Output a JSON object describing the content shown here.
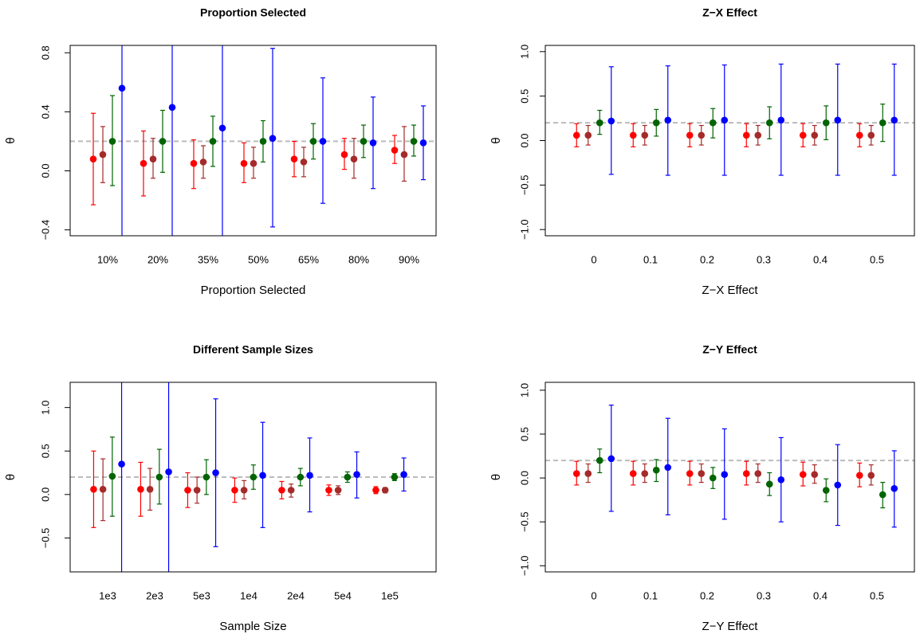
{
  "chart_data": [
    {
      "type": "errorbar",
      "title": "Proportion Selected",
      "xlabel": "Proportion Selected",
      "ylabel": "θ",
      "categories": [
        "10%",
        "20%",
        "35%",
        "50%",
        "65%",
        "80%",
        "90%"
      ],
      "ylim": [
        -0.44,
        0.85
      ],
      "yticks": [
        {
          "value": -0.4,
          "label": "−0.4"
        },
        {
          "value": 0,
          "label": "0.0"
        },
        0.4,
        0.8
      ],
      "hline": 0.2,
      "series": [
        {
          "color": "#ff0000",
          "values": [
            0.08,
            0.05,
            0.05,
            0.05,
            0.08,
            0.11,
            0.14
          ],
          "lower": [
            -0.23,
            -0.17,
            -0.12,
            -0.08,
            -0.04,
            0.01,
            0.05
          ],
          "upper": [
            0.39,
            0.27,
            0.21,
            0.19,
            0.2,
            0.22,
            0.24
          ]
        },
        {
          "color": "#a52a2a",
          "values": [
            0.11,
            0.08,
            0.06,
            0.05,
            0.06,
            0.08,
            0.11
          ],
          "lower": [
            -0.08,
            -0.05,
            -0.05,
            -0.05,
            -0.04,
            -0.05,
            -0.07
          ],
          "upper": [
            0.3,
            0.22,
            0.17,
            0.16,
            0.16,
            0.22,
            0.3
          ]
        },
        {
          "color": "#006400",
          "values": [
            0.2,
            0.2,
            0.2,
            0.2,
            0.2,
            0.2,
            0.2
          ],
          "lower": [
            -0.1,
            -0.01,
            0.03,
            0.06,
            0.08,
            0.09,
            0.1
          ],
          "upper": [
            0.51,
            0.41,
            0.37,
            0.34,
            0.32,
            0.31,
            0.31
          ]
        },
        {
          "color": "#0000ff",
          "values": [
            0.56,
            0.43,
            0.29,
            0.22,
            0.2,
            0.19,
            0.19
          ],
          "lower": [
            -0.6,
            -0.6,
            -0.8,
            -0.38,
            -0.22,
            -0.12,
            -0.06
          ],
          "upper": [
            1.7,
            1.5,
            1.4,
            0.83,
            0.63,
            0.5,
            0.44
          ]
        }
      ]
    },
    {
      "type": "errorbar",
      "title": "Z−X Effect",
      "xlabel": "Z−X Effect",
      "ylabel": "θ",
      "categories": [
        "0",
        "0.1",
        "0.2",
        "0.3",
        "0.4",
        "0.5"
      ],
      "ylim": [
        -1.07,
        1.07
      ],
      "yticks": [
        {
          "value": -1,
          "label": "−1.0"
        },
        {
          "value": -0.5,
          "label": "−0.5"
        },
        {
          "value": 0,
          "label": "0.0"
        },
        0.5,
        {
          "value": 1,
          "label": "1.0"
        }
      ],
      "hline": 0.2,
      "series": [
        {
          "color": "#ff0000",
          "values": [
            0.06,
            0.06,
            0.06,
            0.06,
            0.06,
            0.06
          ],
          "lower": [
            -0.07,
            -0.07,
            -0.07,
            -0.07,
            -0.07,
            -0.07
          ],
          "upper": [
            0.19,
            0.19,
            0.19,
            0.19,
            0.19,
            0.19
          ]
        },
        {
          "color": "#a52a2a",
          "values": [
            0.06,
            0.06,
            0.06,
            0.06,
            0.06,
            0.06
          ],
          "lower": [
            -0.05,
            -0.05,
            -0.05,
            -0.05,
            -0.05,
            -0.05
          ],
          "upper": [
            0.17,
            0.17,
            0.17,
            0.17,
            0.17,
            0.17
          ]
        },
        {
          "color": "#006400",
          "values": [
            0.2,
            0.2,
            0.2,
            0.2,
            0.2,
            0.2
          ],
          "lower": [
            0.07,
            0.05,
            0.03,
            0.02,
            0.01,
            -0.01
          ],
          "upper": [
            0.34,
            0.35,
            0.36,
            0.38,
            0.39,
            0.41
          ]
        },
        {
          "color": "#0000ff",
          "values": [
            0.22,
            0.23,
            0.23,
            0.23,
            0.23,
            0.23
          ],
          "lower": [
            -0.38,
            -0.39,
            -0.39,
            -0.39,
            -0.39,
            -0.39
          ],
          "upper": [
            0.83,
            0.84,
            0.85,
            0.86,
            0.86,
            0.86
          ]
        }
      ]
    },
    {
      "type": "errorbar",
      "title": "Different Sample Sizes",
      "xlabel": "Sample Size",
      "ylabel": "θ",
      "categories": [
        "1e3",
        "2e3",
        "5e3",
        "1e4",
        "2e4",
        "5e4",
        "1e5"
      ],
      "ylim": [
        -0.89,
        1.29
      ],
      "yticks": [
        {
          "value": -0.5,
          "label": "−0.5"
        },
        {
          "value": 0,
          "label": "0.0"
        },
        0.5,
        {
          "value": 1,
          "label": "1.0"
        }
      ],
      "hline": 0.2,
      "series": [
        {
          "color": "#ff0000",
          "values": [
            0.06,
            0.06,
            0.05,
            0.05,
            0.05,
            0.05,
            0.05
          ],
          "lower": [
            -0.38,
            -0.25,
            -0.15,
            -0.09,
            -0.05,
            -0.01,
            0.01
          ],
          "upper": [
            0.5,
            0.37,
            0.25,
            0.19,
            0.15,
            0.11,
            0.09
          ]
        },
        {
          "color": "#a52a2a",
          "values": [
            0.06,
            0.06,
            0.05,
            0.05,
            0.05,
            0.05,
            0.05
          ],
          "lower": [
            -0.3,
            -0.18,
            -0.1,
            -0.05,
            -0.03,
            0,
            0.02
          ],
          "upper": [
            0.41,
            0.3,
            0.2,
            0.16,
            0.12,
            0.1,
            0.08
          ]
        },
        {
          "color": "#006400",
          "values": [
            0.21,
            0.2,
            0.2,
            0.2,
            0.2,
            0.2,
            0.2
          ],
          "lower": [
            -0.25,
            -0.11,
            0,
            0.06,
            0.1,
            0.14,
            0.16
          ],
          "upper": [
            0.66,
            0.52,
            0.4,
            0.34,
            0.3,
            0.26,
            0.24
          ]
        },
        {
          "color": "#0000ff",
          "values": [
            0.35,
            0.26,
            0.25,
            0.22,
            0.22,
            0.23,
            0.23
          ],
          "lower": [
            -1.5,
            -1.5,
            -0.6,
            -0.38,
            -0.2,
            -0.04,
            0.04
          ],
          "upper": [
            2.2,
            2.0,
            1.1,
            0.83,
            0.65,
            0.49,
            0.42
          ]
        }
      ]
    },
    {
      "type": "errorbar",
      "title": "Z−Y Effect",
      "xlabel": "Z−Y Effect",
      "ylabel": "θ",
      "categories": [
        "0",
        "0.1",
        "0.2",
        "0.3",
        "0.4",
        "0.5"
      ],
      "ylim": [
        -1.07,
        1.09
      ],
      "yticks": [
        {
          "value": -1,
          "label": "−1.0"
        },
        {
          "value": -0.5,
          "label": "−0.5"
        },
        {
          "value": 0,
          "label": "0.0"
        },
        0.5,
        {
          "value": 1,
          "label": "1.0"
        }
      ],
      "hline": 0.2,
      "series": [
        {
          "color": "#ff0000",
          "values": [
            0.05,
            0.05,
            0.05,
            0.05,
            0.04,
            0.03
          ],
          "lower": [
            -0.08,
            -0.08,
            -0.08,
            -0.08,
            -0.09,
            -0.1
          ],
          "upper": [
            0.19,
            0.19,
            0.19,
            0.19,
            0.18,
            0.17
          ]
        },
        {
          "color": "#a52a2a",
          "values": [
            0.05,
            0.05,
            0.05,
            0.05,
            0.04,
            0.03
          ],
          "lower": [
            -0.05,
            -0.05,
            -0.05,
            -0.05,
            -0.06,
            -0.08
          ],
          "upper": [
            0.16,
            0.16,
            0.16,
            0.16,
            0.15,
            0.15
          ]
        },
        {
          "color": "#006400",
          "values": [
            0.2,
            0.09,
            0,
            -0.07,
            -0.14,
            -0.19
          ],
          "lower": [
            0.06,
            -0.04,
            -0.12,
            -0.2,
            -0.27,
            -0.34
          ],
          "upper": [
            0.33,
            0.21,
            0.12,
            0.06,
            -0.01,
            -0.05
          ]
        },
        {
          "color": "#0000ff",
          "values": [
            0.22,
            0.12,
            0.04,
            -0.02,
            -0.08,
            -0.12
          ],
          "lower": [
            -0.38,
            -0.42,
            -0.47,
            -0.5,
            -0.54,
            -0.56
          ],
          "upper": [
            0.83,
            0.68,
            0.56,
            0.46,
            0.38,
            0.31
          ]
        }
      ]
    }
  ]
}
